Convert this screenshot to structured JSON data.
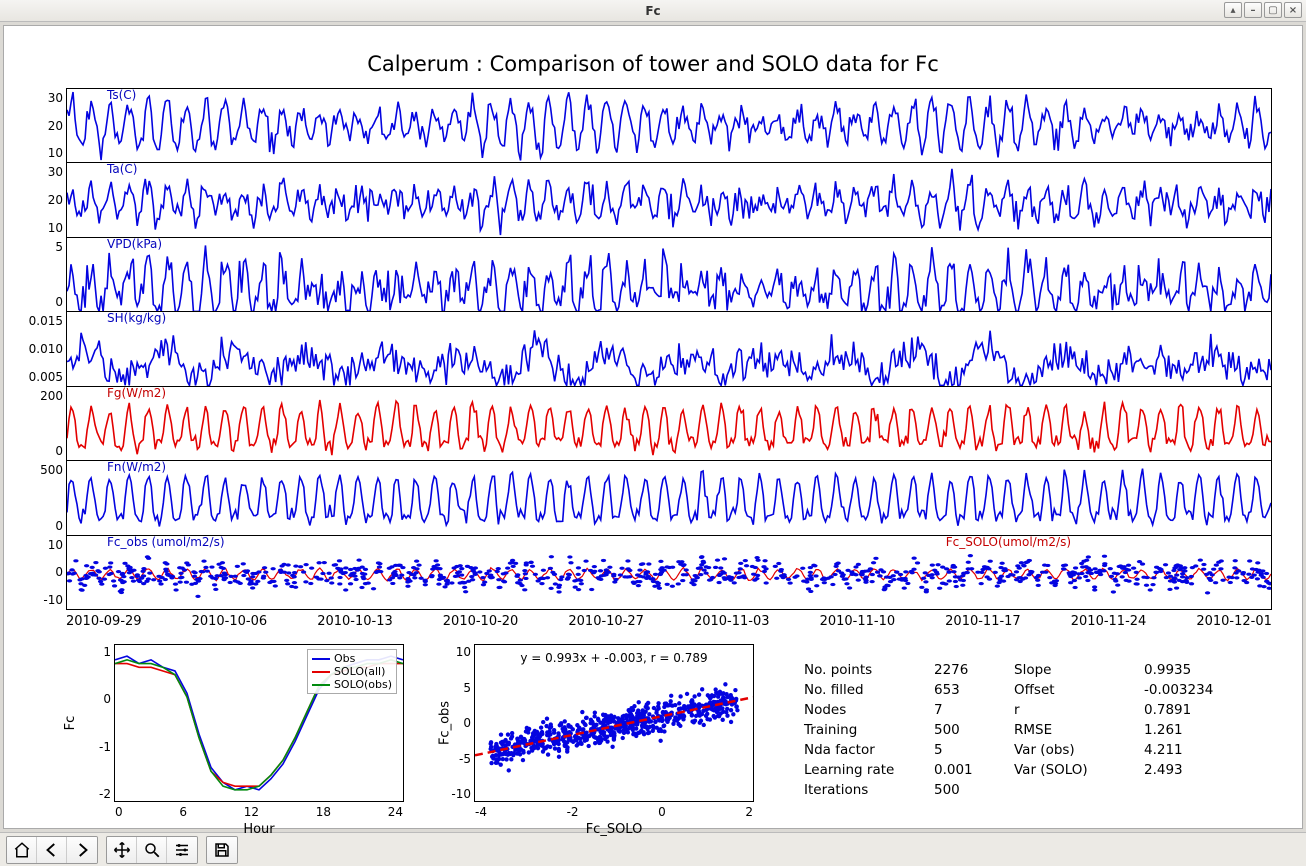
{
  "window": {
    "title": "Fc"
  },
  "figure": {
    "title": "Calperum : Comparison of tower and SOLO data for Fc",
    "title_fontsize": 21,
    "background": "#ffffff",
    "line_color_blue": "#0404e0",
    "line_color_red": "#e30000",
    "line_color_green": "#008a0f",
    "line_width": 1.6
  },
  "date_axis": {
    "labels": [
      "2010-09-29",
      "2010-10-06",
      "2010-10-13",
      "2010-10-20",
      "2010-10-27",
      "2010-11-03",
      "2010-11-10",
      "2010-11-17",
      "2010-11-24",
      "2010-12-01"
    ]
  },
  "panels": [
    {
      "label": "Ts(C)",
      "color": "blue",
      "ymin": 5,
      "ymax": 35,
      "yticks": [
        "10",
        "20",
        "30"
      ],
      "amp": 10,
      "base": 20,
      "freq": 63,
      "noise": 3
    },
    {
      "label": "Ta(C)",
      "color": "blue",
      "ymin": 0,
      "ymax": 35,
      "yticks": [
        "10",
        "20",
        "30"
      ],
      "amp": 9,
      "base": 16,
      "freq": 63,
      "noise": 4
    },
    {
      "label": "VPD(kPa)",
      "color": "blue",
      "ymin": 0,
      "ymax": 5,
      "yticks": [
        "0",
        "5"
      ],
      "amp": 1.8,
      "base": 1.5,
      "freq": 63,
      "noise": 0.8
    },
    {
      "label": "SH(kg/kg)",
      "color": "blue",
      "ymin": 0.002,
      "ymax": 0.016,
      "yticks": [
        "0.005",
        "0.010",
        "0.015"
      ],
      "amp": 0.003,
      "base": 0.006,
      "freq": 16,
      "noise": 0.002
    },
    {
      "label": "Fg(W/m2)",
      "color": "red",
      "ymin": -60,
      "ymax": 230,
      "yticks": [
        "0",
        "200"
      ],
      "amp": 110,
      "base": 40,
      "freq": 63,
      "noise": 20
    },
    {
      "label": "Fn(W/m2)",
      "color": "blue",
      "ymin": -80,
      "ymax": 850,
      "yticks": [
        "0",
        "500"
      ],
      "amp": 380,
      "base": 260,
      "freq": 63,
      "noise": 60
    },
    {
      "label": "Fc_obs (umol/m2/s)",
      "label2": "Fc_SOLO(umol/m2/s)",
      "color": "blue",
      "color2": "red",
      "ymin": -11,
      "ymax": 11,
      "yticks": [
        "-10",
        "0",
        "10"
      ],
      "scatter": true
    }
  ],
  "diurnal": {
    "ylabel": "Fc",
    "xlabel": "Hour",
    "xticks": [
      "0",
      "6",
      "12",
      "18",
      "24"
    ],
    "yticks": [
      "-2",
      "-1",
      "0",
      "1"
    ],
    "ylim": [
      -2.6,
      1.6
    ],
    "xlim": [
      0,
      24
    ],
    "series": [
      {
        "name": "Obs",
        "color": "#0404e0"
      },
      {
        "name": "SOLO(all)",
        "color": "#e30000"
      },
      {
        "name": "SOLO(obs)",
        "color": "#008a0f"
      }
    ],
    "hours": [
      0,
      1,
      2,
      3,
      4,
      5,
      6,
      7,
      8,
      9,
      10,
      11,
      12,
      13,
      14,
      15,
      16,
      17,
      18,
      19,
      20,
      21,
      22,
      23,
      24
    ],
    "obs": [
      1.2,
      1.3,
      1.1,
      1.2,
      1.0,
      0.9,
      0.3,
      -0.8,
      -1.7,
      -2.1,
      -2.3,
      -2.2,
      -2.3,
      -2.0,
      -1.6,
      -1.0,
      -0.3,
      0.4,
      0.8,
      1.0,
      1.1,
      1.2,
      1.2,
      1.3,
      1.2
    ],
    "solo_all": [
      1.1,
      1.1,
      1.0,
      1.0,
      0.9,
      0.8,
      0.2,
      -0.9,
      -1.8,
      -2.1,
      -2.2,
      -2.2,
      -2.2,
      -1.9,
      -1.5,
      -0.9,
      -0.2,
      0.5,
      0.8,
      0.9,
      1.0,
      1.0,
      1.1,
      1.1,
      1.1
    ],
    "solo_obs": [
      1.1,
      1.2,
      1.1,
      1.1,
      1.0,
      0.8,
      0.2,
      -0.9,
      -1.8,
      -2.2,
      -2.3,
      -2.3,
      -2.2,
      -1.9,
      -1.5,
      -0.9,
      -0.2,
      0.5,
      0.8,
      1.0,
      1.0,
      1.1,
      1.1,
      1.2,
      1.1
    ]
  },
  "scatter": {
    "xlabel": "Fc_SOLO",
    "ylabel": "Fc_obs",
    "xlim": [
      -5,
      4
    ],
    "ylim": [
      -12,
      12
    ],
    "xticks": [
      "-4",
      "-2",
      "0",
      "2"
    ],
    "yticks": [
      "-10",
      "-5",
      "0",
      "5",
      "10"
    ],
    "equation": "y = 0.993x + -0.003, r = 0.789",
    "fit_color": "#e30000",
    "point_color": "#0404e0",
    "n_points": 700,
    "noise_sigma": 1.4
  },
  "stats": {
    "left_labels": [
      "No. points",
      "No. filled",
      "Nodes",
      "Training",
      "Nda factor",
      "Learning rate",
      "Iterations"
    ],
    "left_values": [
      "2276",
      "653",
      "7",
      "500",
      "5",
      "0.001",
      "500"
    ],
    "right_labels": [
      "Slope",
      "Offset",
      "r",
      "RMSE",
      "Var (obs)",
      "Var (SOLO)"
    ],
    "right_values": [
      "0.9935",
      "-0.003234",
      "0.7891",
      "1.261",
      "4.211",
      "2.493"
    ]
  }
}
